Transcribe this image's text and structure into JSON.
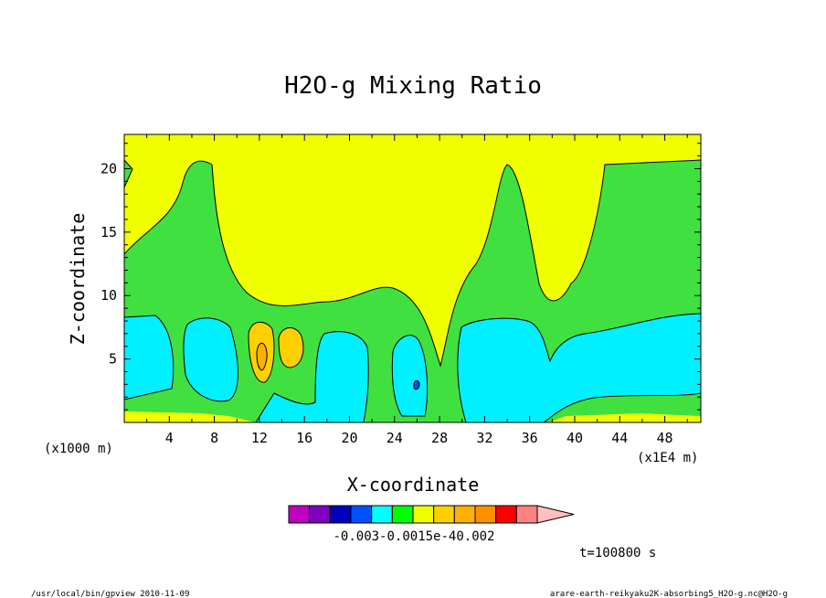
{
  "chart_data": {
    "type": "heatmap",
    "title": "H2O-g Mixing Ratio",
    "xlabel": "X-coordinate",
    "ylabel": "Z-coordinate",
    "x_unit_left": "(x1000 m)",
    "x_unit_right": "(x1E4 m)",
    "x_ticks": [
      "4",
      "8",
      "12",
      "16",
      "20",
      "24",
      "28",
      "32",
      "36",
      "40",
      "44",
      "48"
    ],
    "y_ticks": [
      "5",
      "10",
      "15",
      "20"
    ],
    "xlim": [
      0,
      51.2
    ],
    "ylim": [
      0,
      22.7
    ],
    "grid": false,
    "colorbar": {
      "colors": [
        "#c000c0",
        "#8000c0",
        "#0000c0",
        "#0050ff",
        "#00ffff",
        "#00ff00",
        "#f0ff00",
        "#ffd000",
        "#ffb000",
        "#ff9000",
        "#ff0000",
        "#ff8080",
        "#ffc0c0"
      ],
      "labels": "-0.003-0.0015e-40.002"
    },
    "regions": [
      {
        "level": "yellow",
        "color": "#f0ff00"
      },
      {
        "level": "green",
        "color": "#40e040"
      },
      {
        "level": "cyan",
        "color": "#00f0ff"
      },
      {
        "level": "gold",
        "color": "#ffd000"
      },
      {
        "level": "orange",
        "color": "#ffb000"
      },
      {
        "level": "deep-blue",
        "color": "#0050ff"
      }
    ]
  },
  "time_label": "t=100800 s",
  "footer": {
    "left": "/usr/local/bin/gpview  2010-11-09",
    "right": "arare-earth-reikyaku2K-absorbing5_H2O-g.nc@H2O-g"
  }
}
